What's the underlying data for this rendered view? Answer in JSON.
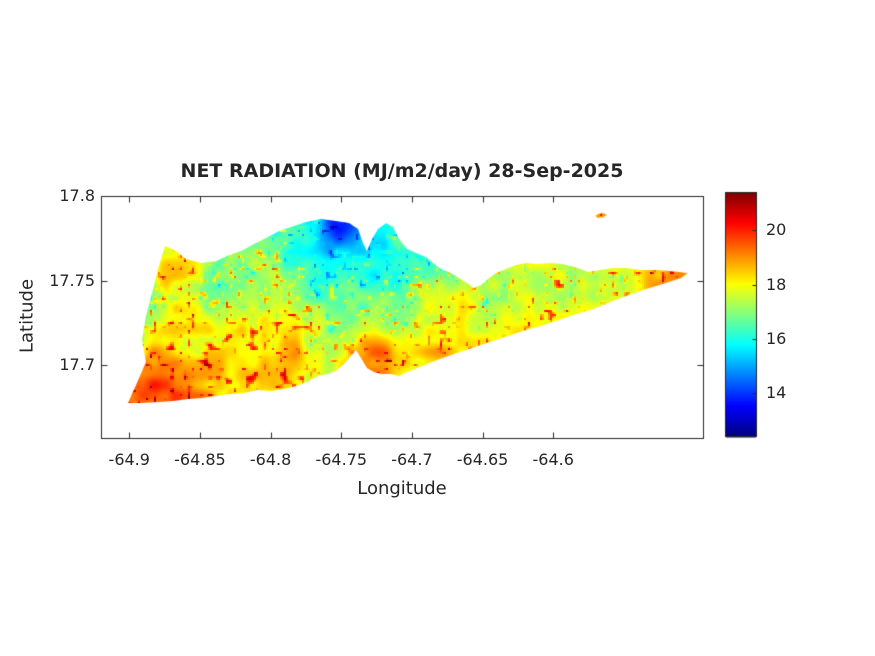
{
  "colors": {
    "background": "#ffffff",
    "axes": "#262626",
    "text": "#262626"
  },
  "chart_data": {
    "type": "heatmap",
    "title": "NET RADIATION (MJ/m2/day) 28-Sep-2025",
    "xlabel": "Longitude",
    "ylabel": "Latitude",
    "units": "MJ/m2/day",
    "xlim": [
      -64.92,
      -64.494
    ],
    "ylim": [
      17.657,
      17.8
    ],
    "grid": false,
    "xticks": {
      "values": [
        -64.9,
        -64.85,
        -64.8,
        -64.75,
        -64.7,
        -64.65,
        -64.6
      ],
      "labels": [
        "-64.9",
        "-64.85",
        "-64.8",
        "-64.75",
        "-64.7",
        "-64.65",
        "-64.6"
      ]
    },
    "yticks": {
      "values": [
        17.8,
        17.75,
        17.7
      ],
      "labels": [
        "17.8",
        "17.75",
        "17.7"
      ]
    },
    "colorbar": {
      "colormap": "jet",
      "range": [
        12.4,
        21.4
      ],
      "tick_values": [
        20,
        18,
        16,
        14
      ],
      "tick_labels": [
        "20",
        "18",
        "16",
        "14"
      ],
      "position": "right"
    },
    "island_outline": [
      [
        -64.9009,
        17.6777
      ],
      [
        -64.8952,
        17.6883
      ],
      [
        -64.8882,
        17.7019
      ],
      [
        -64.891,
        17.7149
      ],
      [
        -64.8882,
        17.7291
      ],
      [
        -64.8839,
        17.7427
      ],
      [
        -64.8797,
        17.7569
      ],
      [
        -64.8747,
        17.7705
      ],
      [
        -64.8669,
        17.7675
      ],
      [
        -64.8599,
        17.7628
      ],
      [
        -64.8492,
        17.7604
      ],
      [
        -64.8386,
        17.7616
      ],
      [
        -64.8294,
        17.7651
      ],
      [
        -64.8209,
        17.7675
      ],
      [
        -64.8103,
        17.7722
      ],
      [
        -64.8018,
        17.7758
      ],
      [
        -64.794,
        17.7793
      ],
      [
        -64.7856,
        17.7817
      ],
      [
        -64.7749,
        17.7846
      ],
      [
        -64.7643,
        17.7864
      ],
      [
        -64.7537,
        17.7852
      ],
      [
        -64.7445,
        17.784
      ],
      [
        -64.7381,
        17.7805
      ],
      [
        -64.7346,
        17.7722
      ],
      [
        -64.7318,
        17.7675
      ],
      [
        -64.7282,
        17.7746
      ],
      [
        -64.724,
        17.7805
      ],
      [
        -64.7183,
        17.784
      ],
      [
        -64.7134,
        17.7817
      ],
      [
        -64.7091,
        17.7746
      ],
      [
        -64.7035,
        17.7687
      ],
      [
        -64.6971,
        17.7663
      ],
      [
        -64.69,
        17.764
      ],
      [
        -64.6851,
        17.7604
      ],
      [
        -64.6794,
        17.7569
      ],
      [
        -64.6723,
        17.7545
      ],
      [
        -64.6667,
        17.7515
      ],
      [
        -64.661,
        17.7486
      ],
      [
        -64.6561,
        17.7456
      ],
      [
        -64.6511,
        17.7474
      ],
      [
        -64.6454,
        17.7515
      ],
      [
        -64.6405,
        17.7545
      ],
      [
        -64.6334,
        17.7569
      ],
      [
        -64.6263,
        17.7592
      ],
      [
        -64.6193,
        17.7604
      ],
      [
        -64.6108,
        17.7598
      ],
      [
        -64.6023,
        17.7604
      ],
      [
        -64.5938,
        17.7598
      ],
      [
        -64.5846,
        17.7581
      ],
      [
        -64.5754,
        17.7551
      ],
      [
        -64.5669,
        17.7563
      ],
      [
        -64.5577,
        17.7575
      ],
      [
        -64.5485,
        17.7575
      ],
      [
        -64.5379,
        17.7563
      ],
      [
        -64.5273,
        17.7563
      ],
      [
        -64.5167,
        17.7557
      ],
      [
        -64.5046,
        17.7545
      ],
      [
        -64.5096,
        17.7516
      ],
      [
        -64.5181,
        17.7492
      ],
      [
        -64.5273,
        17.7468
      ],
      [
        -64.5365,
        17.7445
      ],
      [
        -64.5464,
        17.7415
      ],
      [
        -64.5563,
        17.7386
      ],
      [
        -64.5662,
        17.735
      ],
      [
        -64.5761,
        17.7321
      ],
      [
        -64.586,
        17.7297
      ],
      [
        -64.5959,
        17.7267
      ],
      [
        -64.6066,
        17.7238
      ],
      [
        -64.6172,
        17.7214
      ],
      [
        -64.6278,
        17.7185
      ],
      [
        -64.6384,
        17.7155
      ],
      [
        -64.649,
        17.7126
      ],
      [
        -64.6596,
        17.7096
      ],
      [
        -64.6702,
        17.7066
      ],
      [
        -64.6801,
        17.7037
      ],
      [
        -64.6893,
        17.7007
      ],
      [
        -64.6978,
        17.6978
      ],
      [
        -64.7049,
        17.6954
      ],
      [
        -64.7092,
        17.6936
      ],
      [
        -64.7148,
        17.6948
      ],
      [
        -64.7212,
        17.6948
      ],
      [
        -64.7268,
        17.696
      ],
      [
        -64.7318,
        17.6984
      ],
      [
        -64.736,
        17.7043
      ],
      [
        -64.7396,
        17.709
      ],
      [
        -64.7438,
        17.7049
      ],
      [
        -64.748,
        17.7007
      ],
      [
        -64.753,
        17.6972
      ],
      [
        -64.7593,
        17.6948
      ],
      [
        -64.7664,
        17.6936
      ],
      [
        -64.7742,
        17.6901
      ],
      [
        -64.782,
        17.6877
      ],
      [
        -64.7905,
        17.686
      ],
      [
        -64.7997,
        17.6848
      ],
      [
        -64.8096,
        17.6854
      ],
      [
        -64.8188,
        17.6836
      ],
      [
        -64.8287,
        17.683
      ],
      [
        -64.8386,
        17.6818
      ],
      [
        -64.8485,
        17.6806
      ],
      [
        -64.8584,
        17.68
      ],
      [
        -64.869,
        17.6789
      ],
      [
        -64.8796,
        17.6783
      ],
      [
        -64.8902,
        17.6777
      ]
    ],
    "islets": [
      [
        [
          -64.5704,
          17.7882
        ],
        [
          -64.5683,
          17.7894
        ],
        [
          -64.5647,
          17.79
        ],
        [
          -64.5619,
          17.7888
        ],
        [
          -64.5647,
          17.7876
        ],
        [
          -64.5683,
          17.787
        ]
      ]
    ],
    "field_control_points": [
      [
        -64.753,
        17.7799,
        12.9
      ],
      [
        -64.7636,
        17.7752,
        14.3
      ],
      [
        -64.7424,
        17.7699,
        15.2
      ],
      [
        -64.7572,
        17.7616,
        15.8
      ],
      [
        -64.7792,
        17.7557,
        16.4
      ],
      [
        -64.7282,
        17.7575,
        16.0
      ],
      [
        -64.7049,
        17.7498,
        16.4
      ],
      [
        -64.7721,
        17.7769,
        16.5
      ],
      [
        -64.8712,
        17.7551,
        18.6
      ],
      [
        -64.8393,
        17.7385,
        16.7
      ],
      [
        -64.8599,
        17.7255,
        18.2
      ],
      [
        -64.8146,
        17.7374,
        17.2
      ],
      [
        -64.7919,
        17.7255,
        17.8
      ],
      [
        -64.8499,
        17.6972,
        18.9
      ],
      [
        -64.8782,
        17.6854,
        19.4
      ],
      [
        -64.7862,
        17.7031,
        18.8
      ],
      [
        -64.7282,
        17.7043,
        19.0
      ],
      [
        -64.6872,
        17.709,
        18.5
      ],
      [
        -64.7509,
        17.7385,
        16.6
      ],
      [
        -64.7155,
        17.7314,
        17.2
      ],
      [
        -64.6943,
        17.7445,
        18.4
      ],
      [
        -64.6447,
        17.7415,
        17.0
      ],
      [
        -64.5952,
        17.7445,
        17.9
      ],
      [
        -64.5598,
        17.7474,
        17.8
      ],
      [
        -64.5138,
        17.7539,
        18.8
      ],
      [
        -64.6164,
        17.7563,
        17.6
      ],
      [
        -64.5952,
        17.7338,
        18.0
      ],
      [
        -64.5641,
        17.7888,
        18.5
      ],
      [
        -64.6872,
        17.7592,
        16.8
      ],
      [
        -64.8853,
        17.7385,
        17.0
      ],
      [
        -64.8216,
        17.712,
        18.4
      ],
      [
        -64.7686,
        17.7208,
        17.5
      ],
      [
        -64.6716,
        17.7279,
        17.8
      ],
      [
        -64.6695,
        17.7356,
        18.2
      ],
      [
        -64.8057,
        17.7563,
        17.4
      ]
    ],
    "texture": {
      "low_freq_amp": 0.5,
      "mid_freq_amp": 0.45,
      "red_speckle_boost": 2.6,
      "cyan_speckle_dip": 1.7
    }
  }
}
